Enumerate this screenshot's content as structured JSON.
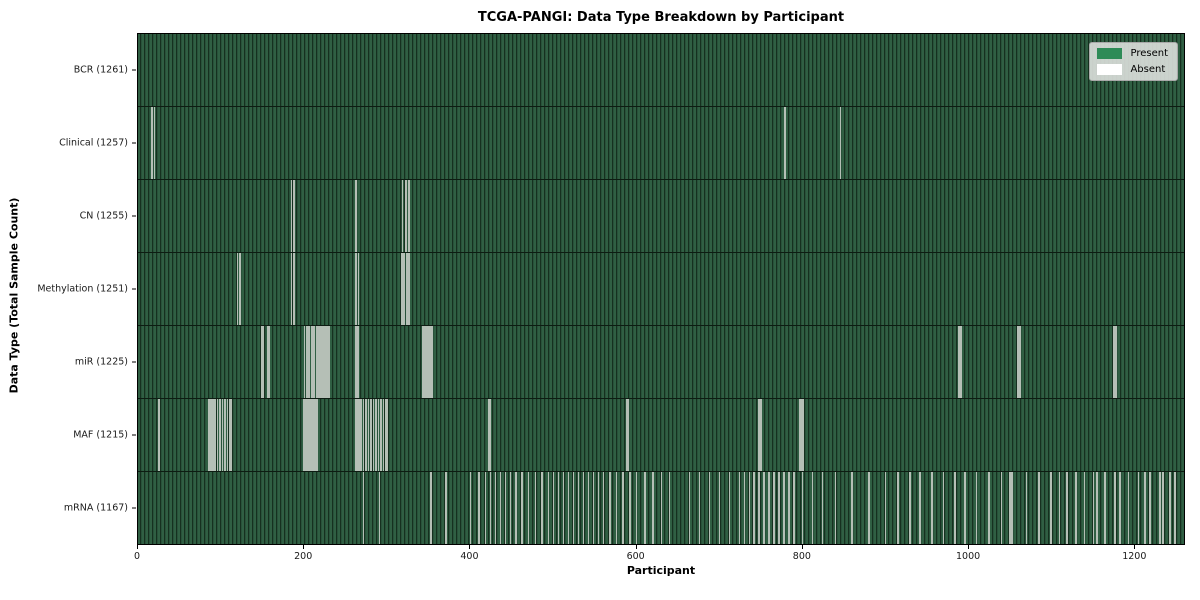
{
  "figure": {
    "title": "TCGA-PANGI: Data Type Breakdown by Participant",
    "xlabel": "Participant",
    "ylabel": "Data Type (Total Sample Count)"
  },
  "legend": {
    "items": [
      {
        "label": "Present",
        "color": "#2e8b57"
      },
      {
        "label": "Absent",
        "color": "#ffffff"
      }
    ]
  },
  "colors": {
    "present_fill": "#2e8b57",
    "bar_texture_light": "#305f43",
    "bar_texture_edge": "#16301f",
    "absent_line": "#b5bfb6",
    "plot_border": "#000000",
    "legend_bg": "#d9ddd9"
  },
  "chart_data": {
    "type": "heatmap",
    "title": "TCGA-PANGI: Data Type Breakdown by Participant",
    "xlabel": "Participant",
    "ylabel": "Data Type (Total Sample Count)",
    "x_ticks": [
      0,
      200,
      400,
      600,
      800,
      1000,
      1200
    ],
    "x_range": [
      0,
      1261
    ],
    "total_participants": 1261,
    "grid": false,
    "legend_position": "upper right",
    "legend_entries": [
      "Present",
      "Absent"
    ],
    "rows": [
      {
        "label": "BCR (1261)",
        "data_type": "BCR",
        "present_count": 1261,
        "absent_count": 0,
        "absent_positions": []
      },
      {
        "label": "Clinical (1257)",
        "data_type": "Clinical",
        "present_count": 1257,
        "absent_count": 4,
        "absent_positions": [
          16,
          19,
          779,
          846
        ]
      },
      {
        "label": "CN (1255)",
        "data_type": "CN",
        "present_count": 1255,
        "absent_count": 6,
        "absent_positions": [
          184,
          187,
          262,
          318,
          322,
          326
        ]
      },
      {
        "label": "Methylation (1251)",
        "data_type": "Methylation",
        "present_count": 1251,
        "absent_count": 10,
        "absent_positions": [
          119,
          122,
          184,
          187,
          262,
          265,
          317,
          320,
          323,
          326
        ]
      },
      {
        "label": "miR (1225)",
        "data_type": "miR",
        "present_count": 1225,
        "absent_count": 36,
        "absent_positions": [
          148,
          150,
          155,
          157,
          200,
          202,
          204,
          206,
          208,
          210,
          212,
          214,
          216,
          218,
          220,
          222,
          224,
          226,
          228,
          230,
          262,
          264,
          342,
          344,
          346,
          348,
          350,
          352,
          354,
          988,
          990,
          992,
          1060,
          1062,
          1176,
          1178
        ]
      },
      {
        "label": "MAF (1215)",
        "data_type": "MAF",
        "present_count": 1215,
        "absent_count": 46,
        "absent_positions": [
          24,
          84,
          86,
          88,
          90,
          92,
          95,
          98,
          101,
          104,
          107,
          110,
          112,
          199,
          201,
          203,
          205,
          207,
          209,
          211,
          213,
          215,
          262,
          264,
          266,
          268,
          271,
          274,
          277,
          280,
          283,
          286,
          289,
          292,
          295,
          298,
          300,
          422,
          424,
          588,
          590,
          748,
          750,
          797,
          799,
          801
        ]
      },
      {
        "label": "mRNA (1167)",
        "data_type": "mRNA",
        "present_count": 1167,
        "absent_count": 94,
        "absent_positions": [
          271,
          290,
          352,
          370,
          400,
          410,
          418,
          424,
          430,
          436,
          442,
          448,
          455,
          462,
          470,
          478,
          486,
          494,
          500,
          506,
          512,
          518,
          524,
          530,
          536,
          542,
          548,
          554,
          560,
          568,
          576,
          584,
          592,
          600,
          610,
          620,
          630,
          640,
          664,
          676,
          688,
          700,
          712,
          724,
          730,
          736,
          742,
          748,
          754,
          760,
          766,
          772,
          778,
          784,
          790,
          800,
          812,
          824,
          840,
          860,
          880,
          900,
          915,
          930,
          942,
          956,
          970,
          984,
          996,
          1010,
          1025,
          1040,
          1050,
          1053,
          1070,
          1085,
          1100,
          1110,
          1119,
          1130,
          1140,
          1151,
          1155,
          1165,
          1177,
          1183,
          1193,
          1205,
          1213,
          1219,
          1231,
          1235,
          1243,
          1249
        ]
      }
    ]
  }
}
